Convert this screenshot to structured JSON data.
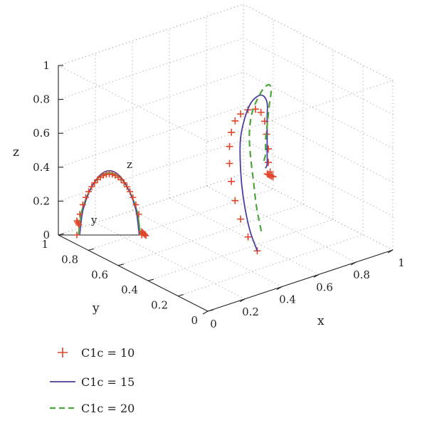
{
  "chart_data": {
    "type": "line",
    "chart_kind": "3d-trajectory",
    "title": "",
    "axes": {
      "x": {
        "label": "x",
        "ticks": [
          "0",
          "0.2",
          "0.4",
          "0.6",
          "0.8",
          "1"
        ],
        "range": [
          0,
          1
        ]
      },
      "y": {
        "label": "y",
        "ticks": [
          "0",
          "0.2",
          "0.4",
          "0.6",
          "0.8",
          "1"
        ],
        "range": [
          0,
          1
        ]
      },
      "z": {
        "label": "z",
        "ticks": [
          "0",
          "0.2",
          "0.4",
          "0.6",
          "0.8",
          "1"
        ],
        "range": [
          0,
          1
        ]
      },
      "grid": "dotted"
    },
    "inset": {
      "description": "projection onto the y-z plane",
      "y_label": "y",
      "z_label": "z"
    },
    "legend": {
      "placement": "bottom-left",
      "entries": [
        {
          "label": "C1c = 10",
          "color": "#e0452a",
          "style": "plus-markers"
        },
        {
          "label": "C1c = 15",
          "color": "#4b3f9e",
          "style": "solid"
        },
        {
          "label": "C1c = 20",
          "color": "#4ba53a",
          "style": "dashed"
        }
      ]
    },
    "series": [
      {
        "name": "C1c = 10",
        "points": [
          [
            0.55,
            0.35,
            0.0
          ],
          [
            0.5,
            0.35,
            0.1
          ],
          [
            0.46,
            0.35,
            0.22
          ],
          [
            0.43,
            0.35,
            0.34
          ],
          [
            0.41,
            0.35,
            0.46
          ],
          [
            0.4,
            0.35,
            0.57
          ],
          [
            0.4,
            0.35,
            0.67
          ],
          [
            0.41,
            0.35,
            0.75
          ],
          [
            0.43,
            0.35,
            0.81
          ],
          [
            0.46,
            0.35,
            0.84
          ],
          [
            0.5,
            0.35,
            0.85
          ],
          [
            0.54,
            0.35,
            0.84
          ],
          [
            0.57,
            0.35,
            0.81
          ],
          [
            0.59,
            0.35,
            0.75
          ],
          [
            0.6,
            0.35,
            0.67
          ],
          [
            0.61,
            0.35,
            0.58
          ],
          [
            0.61,
            0.35,
            0.5
          ],
          [
            0.62,
            0.35,
            0.44
          ],
          [
            0.62,
            0.35,
            0.42
          ]
        ]
      },
      {
        "name": "C1c = 15",
        "points": [
          [
            0.55,
            0.35,
            0.0
          ],
          [
            0.52,
            0.36,
            0.12
          ],
          [
            0.5,
            0.37,
            0.26
          ],
          [
            0.49,
            0.38,
            0.4
          ],
          [
            0.49,
            0.39,
            0.54
          ],
          [
            0.5,
            0.4,
            0.66
          ],
          [
            0.53,
            0.41,
            0.76
          ],
          [
            0.57,
            0.42,
            0.83
          ],
          [
            0.61,
            0.42,
            0.86
          ],
          [
            0.64,
            0.42,
            0.85
          ],
          [
            0.66,
            0.42,
            0.8
          ],
          [
            0.66,
            0.42,
            0.72
          ],
          [
            0.66,
            0.42,
            0.62
          ],
          [
            0.66,
            0.42,
            0.52
          ],
          [
            0.66,
            0.42,
            0.44
          ],
          [
            0.65,
            0.42,
            0.42
          ]
        ]
      },
      {
        "name": "C1c = 20",
        "points": [
          [
            0.58,
            0.36,
            0.1
          ],
          [
            0.57,
            0.38,
            0.24
          ],
          [
            0.57,
            0.4,
            0.38
          ],
          [
            0.57,
            0.42,
            0.52
          ],
          [
            0.58,
            0.44,
            0.64
          ],
          [
            0.61,
            0.46,
            0.74
          ],
          [
            0.65,
            0.47,
            0.81
          ],
          [
            0.69,
            0.48,
            0.85
          ],
          [
            0.72,
            0.48,
            0.86
          ],
          [
            0.73,
            0.48,
            0.82
          ],
          [
            0.72,
            0.48,
            0.74
          ],
          [
            0.71,
            0.48,
            0.64
          ],
          [
            0.7,
            0.48,
            0.54
          ],
          [
            0.7,
            0.48,
            0.46
          ],
          [
            0.69,
            0.48,
            0.42
          ]
        ]
      }
    ]
  }
}
